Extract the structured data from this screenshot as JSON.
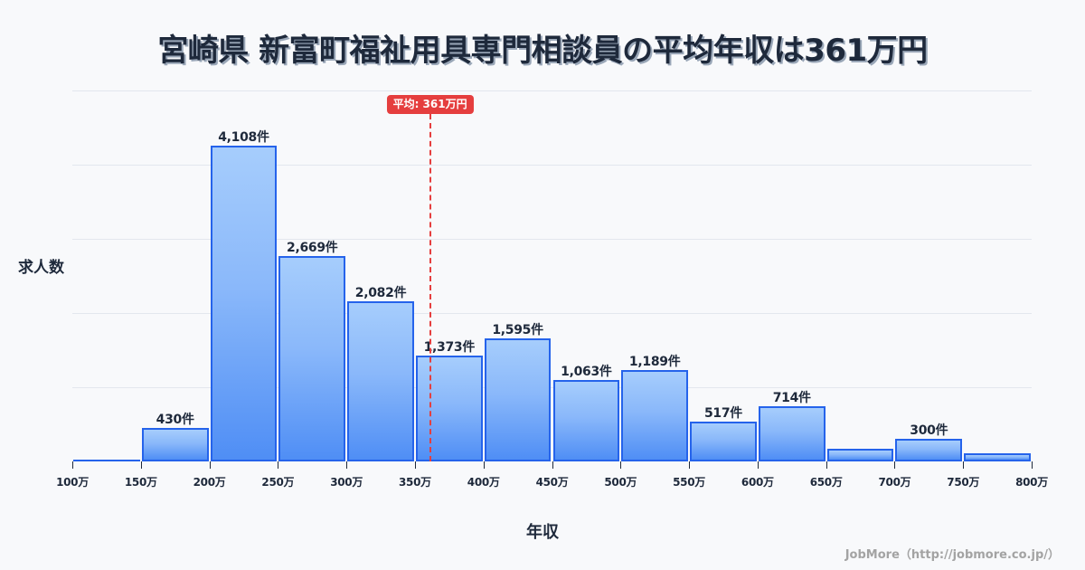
{
  "header": {
    "title": "宮崎県 新富町福祉用具専門相談員の平均年収は361万円"
  },
  "axes": {
    "ylabel": "求人数",
    "xlabel": "年収"
  },
  "credit": "JobMore（http://jobmore.co.jp/）",
  "colors": {
    "bar_border": "#2563eb",
    "bar_top": "#a6cdfc",
    "bar_bottom": "#4f8ef5",
    "mean": "#e53e3e",
    "grid": "#e3e7ee",
    "text": "#1e293b",
    "background": "#f8f9fb"
  },
  "chart_data": {
    "type": "bar",
    "subtype": "histogram",
    "title": "宮崎県 新富町福祉用具専門相談員の平均年収は361万円",
    "xlabel": "年収",
    "ylabel": "求人数",
    "x_ticks": [
      "100万",
      "150万",
      "200万",
      "250万",
      "300万",
      "350万",
      "400万",
      "450万",
      "500万",
      "550万",
      "600万",
      "650万",
      "700万",
      "750万",
      "800万"
    ],
    "categories": [
      "100-150万",
      "150-200万",
      "200-250万",
      "250-300万",
      "300-350万",
      "350-400万",
      "400-450万",
      "450-500万",
      "500-550万",
      "550-600万",
      "600-650万",
      "650-700万",
      "700-750万",
      "750-800万"
    ],
    "values": [
      20,
      430,
      4108,
      2669,
      2082,
      1373,
      1595,
      1063,
      1189,
      517,
      714,
      165,
      300,
      106
    ],
    "labels": [
      "",
      "430件",
      "4,108件",
      "2,669件",
      "2,082件",
      "1,373件",
      "1,595件",
      "1,063件",
      "1,189件",
      "517件",
      "714件",
      "",
      "300件",
      ""
    ],
    "xlim": [
      100,
      800
    ],
    "ylim": [
      0,
      4800
    ],
    "grid": true,
    "annotations": [
      {
        "type": "vline",
        "x": 361,
        "label": "平均: 361万円",
        "style": "dashed",
        "color": "#e53e3e"
      }
    ],
    "legend": "none"
  }
}
